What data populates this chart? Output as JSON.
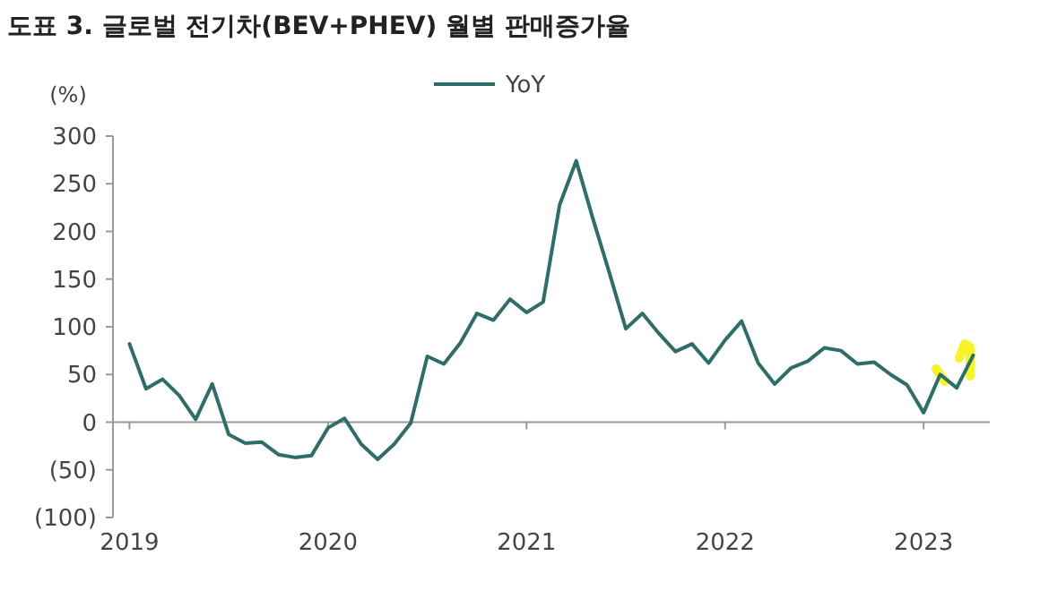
{
  "chart_data": {
    "type": "line",
    "title": "도표 3. 글로벌 전기차(BEV+PHEV) 월별 판매증가율",
    "ylabel": "(%)",
    "x": [
      "2019-01",
      "2019-02",
      "2019-03",
      "2019-04",
      "2019-05",
      "2019-06",
      "2019-07",
      "2019-08",
      "2019-09",
      "2019-10",
      "2019-11",
      "2019-12",
      "2020-01",
      "2020-02",
      "2020-03",
      "2020-04",
      "2020-05",
      "2020-06",
      "2020-07",
      "2020-08",
      "2020-09",
      "2020-10",
      "2020-11",
      "2020-12",
      "2021-01",
      "2021-02",
      "2021-03",
      "2021-04",
      "2021-05",
      "2021-06",
      "2021-07",
      "2021-08",
      "2021-09",
      "2021-10",
      "2021-11",
      "2021-12",
      "2022-01",
      "2022-02",
      "2022-03",
      "2022-04",
      "2022-05",
      "2022-06",
      "2022-07",
      "2022-08",
      "2022-09",
      "2022-10",
      "2022-11",
      "2022-12",
      "2023-01",
      "2023-02",
      "2023-03",
      "2023-04"
    ],
    "series": [
      {
        "name": "YoY",
        "color": "#2e6e68",
        "values": [
          82,
          35,
          45,
          28,
          3,
          40,
          -13,
          -22,
          -21,
          -34,
          -37,
          -35,
          -6,
          4,
          -23,
          -39,
          -23,
          -1,
          69,
          61,
          83,
          114,
          107,
          129,
          115,
          126,
          228,
          274,
          214,
          157,
          98,
          114,
          93,
          74,
          82,
          62,
          86,
          106,
          62,
          40,
          57,
          64,
          78,
          75,
          61,
          63,
          50,
          39,
          10,
          50,
          36,
          70
        ]
      }
    ],
    "xlim": [
      "2018-12",
      "2023-05"
    ],
    "xticks": [
      {
        "value": "2019",
        "label": "2019"
      },
      {
        "value": "2020",
        "label": "2020"
      },
      {
        "value": "2021",
        "label": "2021"
      },
      {
        "value": "2022",
        "label": "2022"
      },
      {
        "value": "2023",
        "label": "2023"
      }
    ],
    "ylim": [
      -100,
      300
    ],
    "yticks": [
      {
        "value": -100,
        "label": "(100)"
      },
      {
        "value": -50,
        "label": "(50)"
      },
      0,
      50,
      100,
      150,
      200,
      250,
      300
    ],
    "legend": "top"
  }
}
